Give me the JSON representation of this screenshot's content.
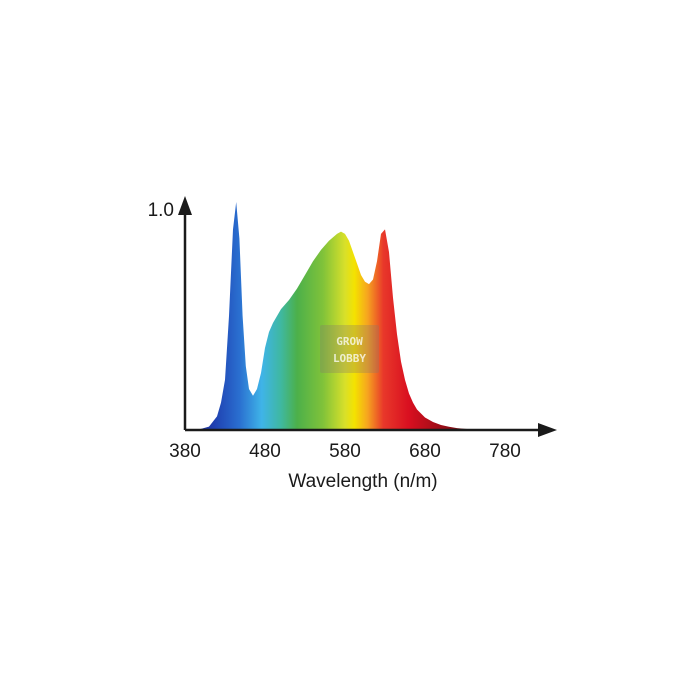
{
  "chart_data": {
    "type": "area",
    "title": "",
    "xlabel": "Wavelength (n/m)",
    "ylabel": "",
    "xlim": [
      380,
      780
    ],
    "ylim": [
      0,
      1.0
    ],
    "x_ticks": [
      "380",
      "480",
      "580",
      "680",
      "780"
    ],
    "y_ticks": [
      "1.0"
    ],
    "grid": false,
    "legend": "none",
    "series": [
      {
        "x": [
          395,
          400,
          410,
          420,
          425,
          430,
          435,
          440,
          444,
          448,
          452,
          456,
          460,
          465,
          470,
          475,
          480,
          485,
          490,
          495,
          500,
          510,
          520,
          530,
          540,
          550,
          560,
          570,
          575,
          580,
          585,
          590,
          595,
          600,
          605,
          610,
          615,
          620,
          625,
          630,
          635,
          640,
          645,
          650,
          655,
          660,
          665,
          670,
          680,
          690,
          700,
          710,
          720,
          730,
          740,
          750,
          760,
          770,
          780
        ],
        "y": [
          0.0,
          0.005,
          0.015,
          0.06,
          0.12,
          0.22,
          0.5,
          0.88,
          1.0,
          0.84,
          0.5,
          0.28,
          0.18,
          0.15,
          0.18,
          0.25,
          0.36,
          0.43,
          0.47,
          0.5,
          0.53,
          0.57,
          0.62,
          0.68,
          0.74,
          0.79,
          0.83,
          0.86,
          0.87,
          0.86,
          0.83,
          0.78,
          0.73,
          0.68,
          0.65,
          0.64,
          0.66,
          0.74,
          0.86,
          0.88,
          0.78,
          0.58,
          0.42,
          0.3,
          0.22,
          0.16,
          0.12,
          0.09,
          0.055,
          0.035,
          0.022,
          0.014,
          0.008,
          0.005,
          0.003,
          0.0015,
          0.0008,
          0.0003,
          0.0
        ]
      }
    ]
  },
  "watermark": {
    "line1": "GROW",
    "line2": "LOBBY"
  }
}
